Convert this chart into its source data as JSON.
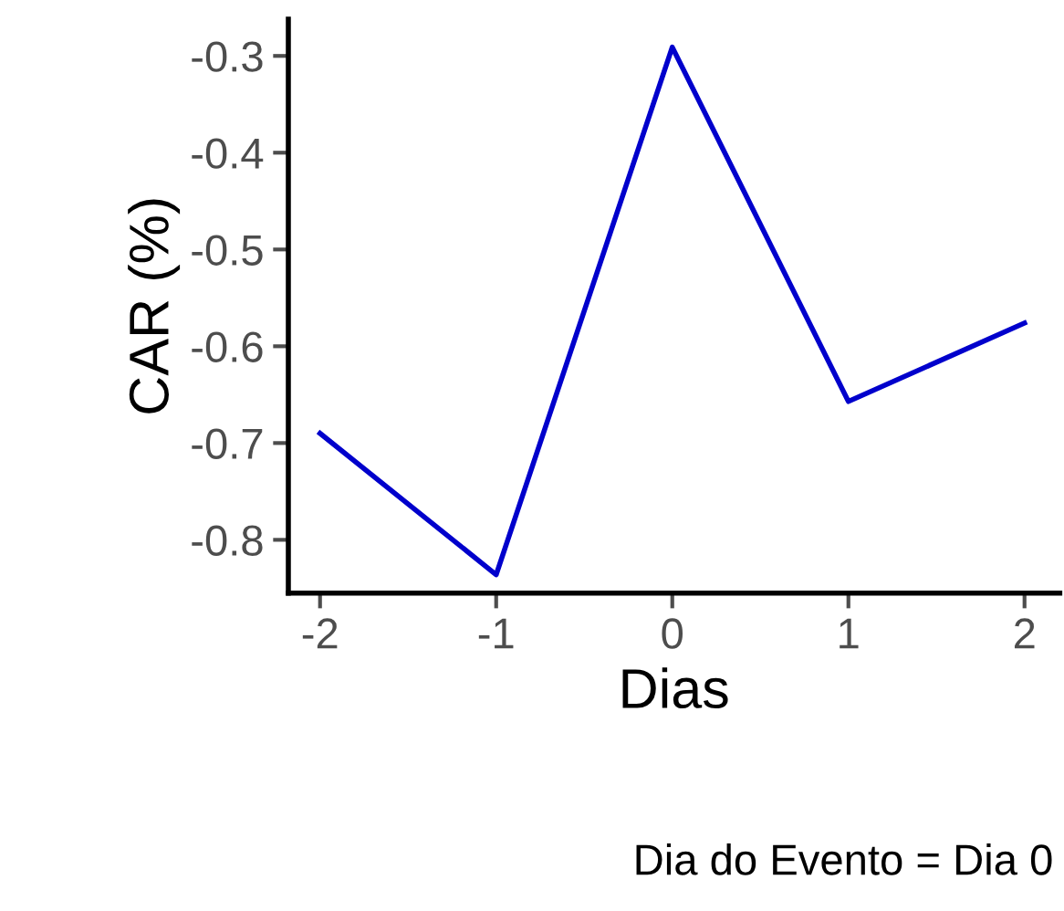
{
  "chart_data": {
    "type": "line",
    "xlabel": "Dias",
    "ylabel": "CAR (%)",
    "x": [
      -2,
      -1,
      0,
      1,
      2
    ],
    "series": [
      {
        "color": "#0000cc",
        "values": [
          -0.69,
          -0.836,
          -0.291,
          -0.657,
          -0.576
        ]
      }
    ],
    "xlim": [
      -2.18,
      2.2
    ],
    "xticks": [
      {
        "value": -2,
        "label": "-2"
      },
      {
        "value": -1,
        "label": "-1"
      },
      0,
      1,
      2
    ],
    "ylim": [
      -0.855,
      -0.262
    ],
    "yticks": [
      {
        "value": -0.8,
        "label": "-0.8"
      },
      {
        "value": -0.7,
        "label": "-0.7"
      },
      {
        "value": -0.6,
        "label": "-0.6"
      },
      {
        "value": -0.5,
        "label": "-0.5"
      },
      {
        "value": -0.4,
        "label": "-0.4"
      },
      {
        "value": -0.3,
        "label": "-0.3"
      }
    ],
    "grid": false,
    "marker": "none",
    "line_style": "solid",
    "annotations": [
      "Dia do Evento = Dia 0"
    ]
  }
}
